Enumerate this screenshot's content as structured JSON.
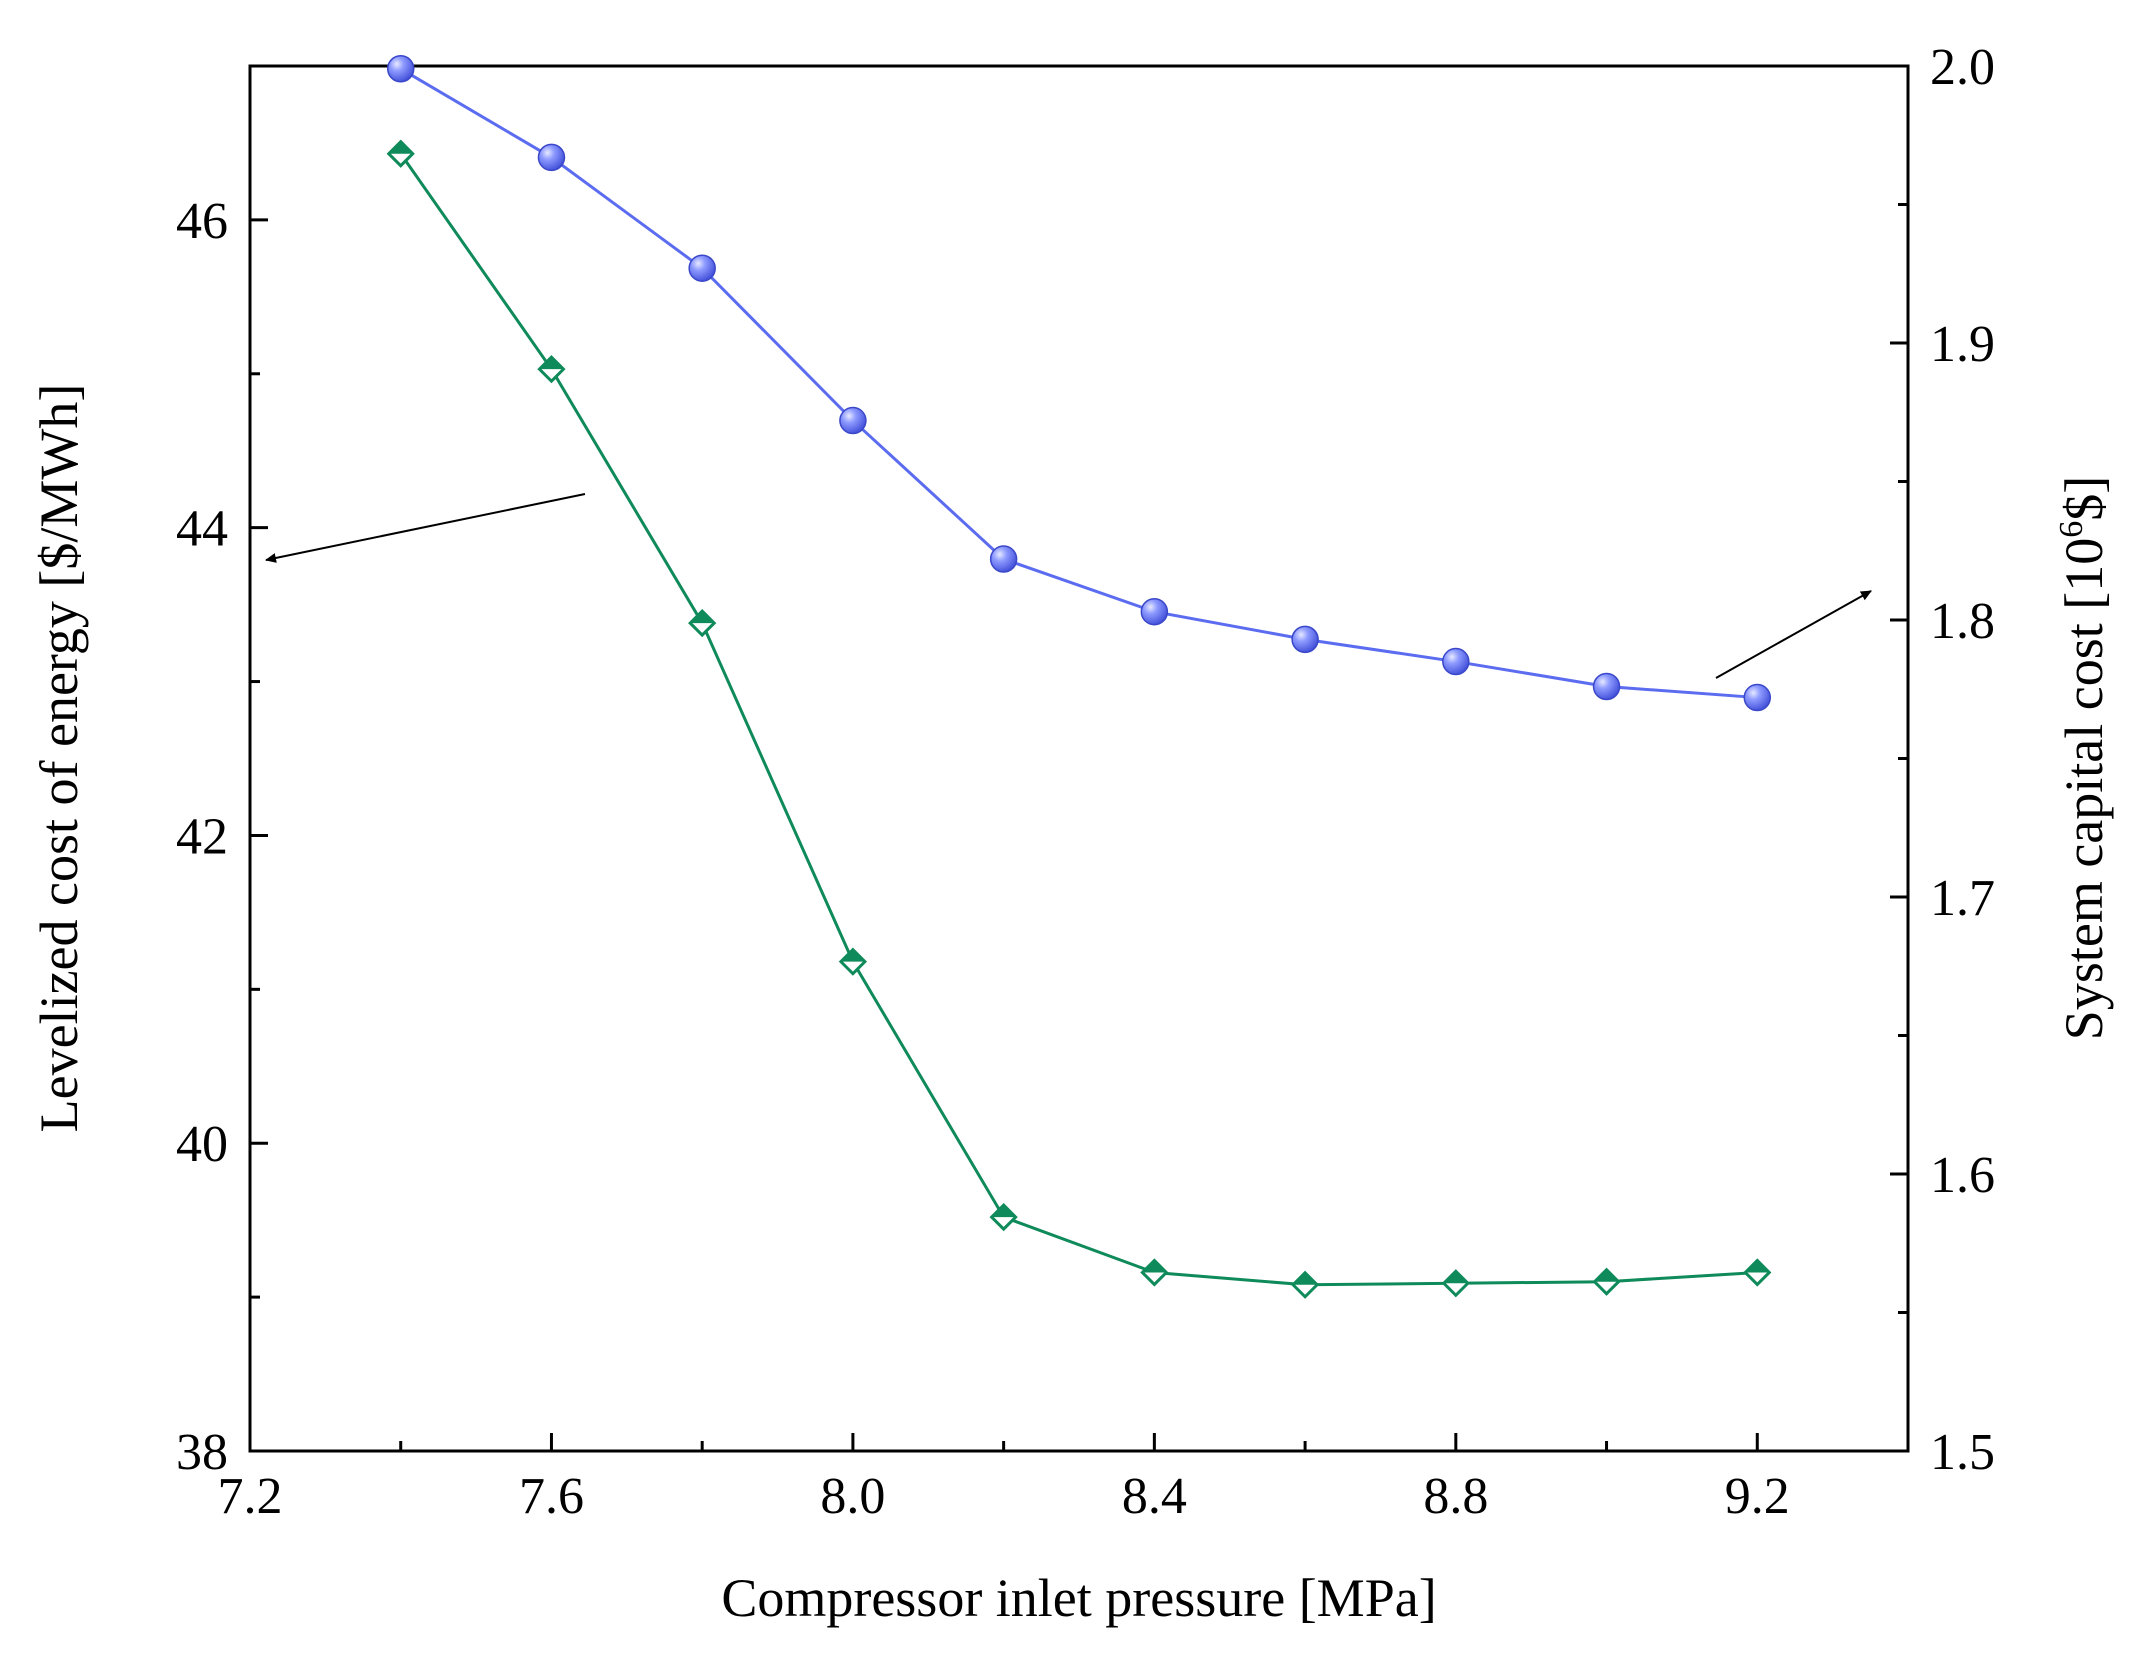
{
  "chart_data": {
    "type": "line",
    "title": "",
    "xlabel": "Compressor inlet pressure [MPa]",
    "ylabel_left": "Levelized cost of energy [$/MWh]",
    "ylabel_right": {
      "prefix": "System capital cost [10",
      "sup": "6",
      "suffix": "$]"
    },
    "xlim": [
      7.2,
      9.4
    ],
    "ylim_left": [
      38,
      47
    ],
    "ylim_right": [
      1.5,
      2.0
    ],
    "x_ticks": [
      "7.2",
      "7.6",
      "8.0",
      "8.4",
      "8.8",
      "9.2"
    ],
    "y_left_ticks": [
      "38",
      "40",
      "42",
      "44",
      "46"
    ],
    "y_right_ticks": [
      "1.5",
      "1.6",
      "1.7",
      "1.8",
      "1.9",
      "2.0"
    ],
    "x": [
      7.4,
      7.6,
      7.8,
      8.0,
      8.2,
      8.4,
      8.6,
      8.8,
      9.0,
      9.2
    ],
    "series": [
      {
        "name": "Levelized cost of energy",
        "axis": "left",
        "marker": "diamond-half-filled",
        "color": "#0f8a5a",
        "values": [
          46.43,
          45.03,
          43.38,
          41.18,
          39.52,
          39.16,
          39.08,
          39.09,
          39.1,
          39.16
        ]
      },
      {
        "name": "System capital cost",
        "axis": "right",
        "marker": "sphere",
        "color": "#5b6cf0",
        "values": [
          1.999,
          1.967,
          1.927,
          1.872,
          1.822,
          1.803,
          1.793,
          1.785,
          1.776,
          1.772
        ]
      }
    ],
    "annotations": [
      {
        "label": "arrow pointing to left axis",
        "series": "Levelized cost of energy"
      },
      {
        "label": "arrow pointing to right axis",
        "series": "System capital cost"
      }
    ]
  }
}
